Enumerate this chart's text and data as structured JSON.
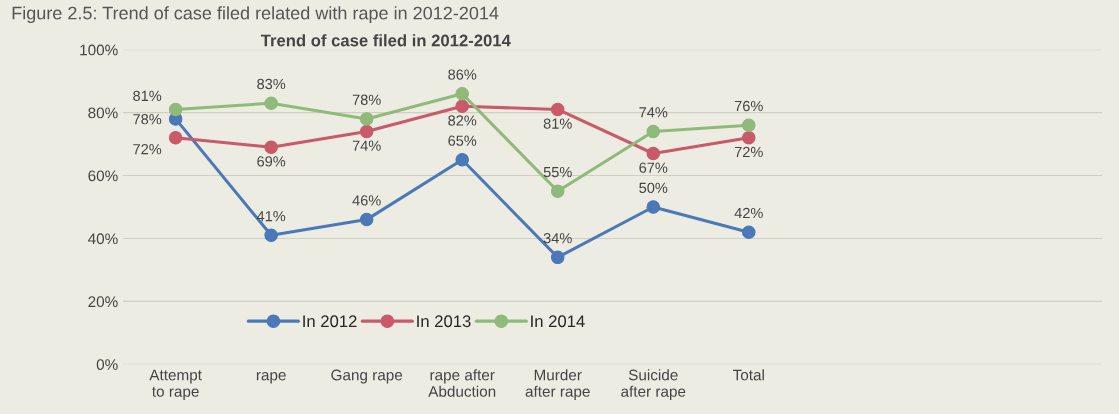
{
  "chart_data": {
    "type": "line",
    "title": "Figure 2.5: Trend of case filed related with rape in 2012-2014",
    "subtitle": "Trend of case filed in 2012-2014",
    "categories": [
      "Attempt\nto rape",
      "rape",
      "Gang rape",
      "rape after\nAbduction",
      "Murder\nafter rape",
      "Suicide\nafter rape",
      "Total"
    ],
    "series": [
      {
        "name": "In 2012",
        "color": "#4a78b8",
        "values": [
          78,
          41,
          46,
          65,
          34,
          50,
          42
        ],
        "value_labels": [
          "78%",
          "41%",
          "46%",
          "65%",
          "34%",
          "50%",
          "42%"
        ]
      },
      {
        "name": "In 2013",
        "color": "#c95a6a",
        "values": [
          72,
          69,
          74,
          82,
          81,
          67,
          72
        ],
        "value_labels": [
          "72%",
          "69%",
          "74%",
          "82%",
          "81%",
          "67%",
          "72%"
        ]
      },
      {
        "name": "In 2014",
        "color": "#8fba7a",
        "values": [
          81,
          83,
          78,
          86,
          55,
          74,
          76
        ],
        "value_labels": [
          "81%",
          "83%",
          "78%",
          "86%",
          "55%",
          "74%",
          "76%"
        ]
      }
    ],
    "ylim": [
      0,
      100
    ],
    "yticks": [
      {
        "value": 0,
        "label": "0%"
      },
      {
        "value": 20,
        "label": "20%"
      },
      {
        "value": 40,
        "label": "40%"
      },
      {
        "value": 60,
        "label": "60%"
      },
      {
        "value": 80,
        "label": "80%"
      },
      {
        "value": 100,
        "label": "100%"
      }
    ],
    "grid": "y",
    "legend": "bottom",
    "marker": "circle",
    "line_style": "solid"
  }
}
